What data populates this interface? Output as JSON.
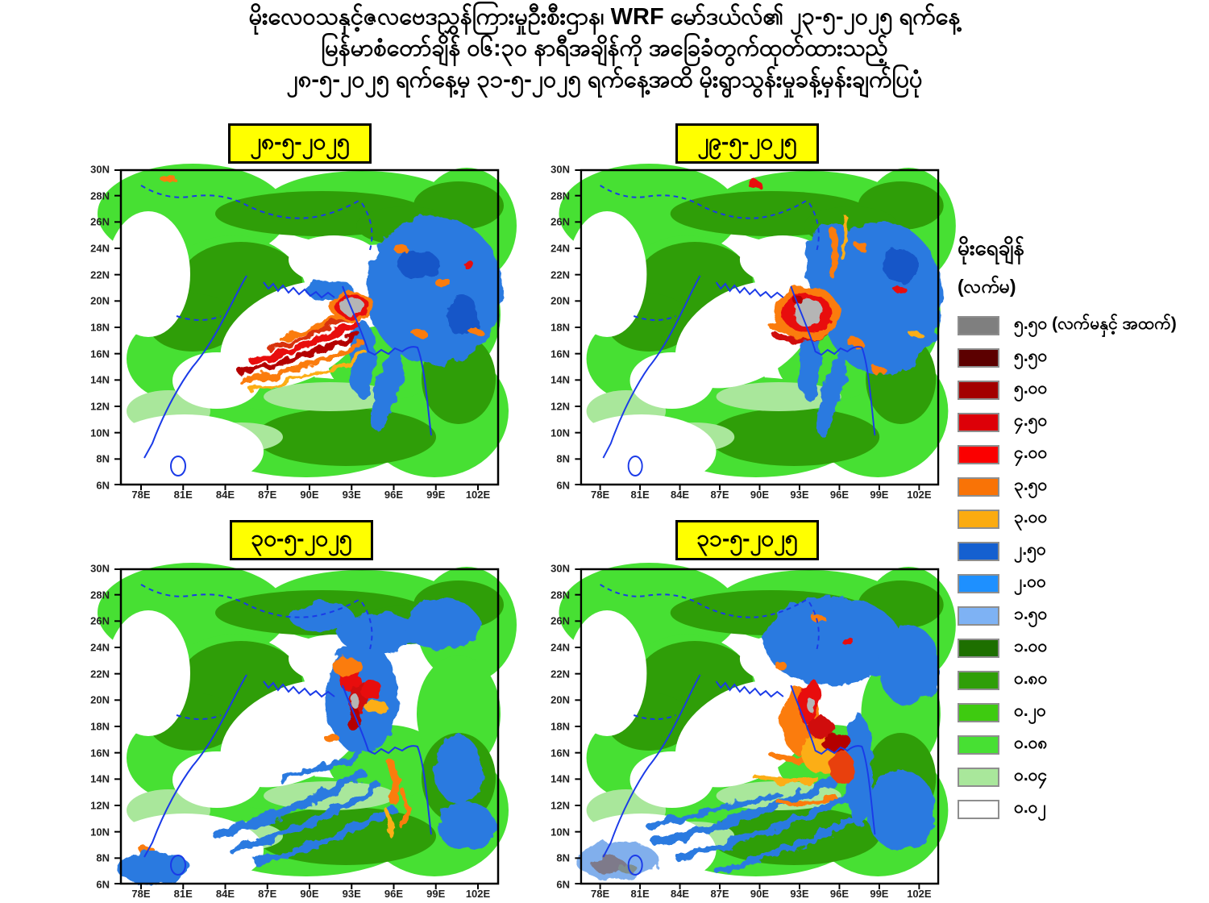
{
  "title": {
    "line1": "မိုးလေဝသနှင့်ဇလဗေဒညွှန်ကြားမှုဦးစီးဌာန၊ WRF မော်ဒယ်လ်၏ ၂၃-၅-၂၀၂၅ ရက်နေ့",
    "line2": "မြန်မာစံတော်ချိန် ၀၆:၃၀ နာရီအချိန်ကို အခြေခံတွက်ထုတ်ထားသည့်",
    "line3": "၂၈-၅-၂၀၂၅ ရက်နေ့မှ ၃၁-၅-၂၀၂၅ ရက်နေ့အထိ မိုးရွာသွန်းမှုခန့်မှန်းချက်ပြပုံ"
  },
  "panels": [
    {
      "date_label": "၂၈-၅-၂၀၂၅"
    },
    {
      "date_label": "၂၉-၅-၂၀၂၅"
    },
    {
      "date_label": "၃၀-၅-၂၀၂၅"
    },
    {
      "date_label": "၃၁-၅-၂၀၂၅"
    }
  ],
  "axes": {
    "lat_ticks": [
      "30N",
      "28N",
      "26N",
      "24N",
      "22N",
      "20N",
      "18N",
      "16N",
      "14N",
      "12N",
      "10N",
      "8N",
      "6N"
    ],
    "lon_ticks": [
      "78E",
      "81E",
      "84E",
      "87E",
      "90E",
      "93E",
      "96E",
      "99E",
      "102E"
    ]
  },
  "legend": {
    "title": "မိုးရေချိန်",
    "subtitle": "(လက်မ)",
    "entries": [
      {
        "color": "#7f7f7f",
        "label": "၅.၅၀ (လက်မနှင့် အထက်)"
      },
      {
        "color": "#5c0000",
        "label": "၅.၅၀"
      },
      {
        "color": "#a30000",
        "label": "၅.၀၀"
      },
      {
        "color": "#dd0008",
        "label": "၄.၅၀"
      },
      {
        "color": "#fb0000",
        "label": "၄.၀၀"
      },
      {
        "color": "#f97306",
        "label": "၃.၅၀"
      },
      {
        "color": "#fbab10",
        "label": "၃.၀၀"
      },
      {
        "color": "#1560d0",
        "label": "၂.၅၀"
      },
      {
        "color": "#1e90ff",
        "label": "၂.၀၀"
      },
      {
        "color": "#7eb2f4",
        "label": "၁.၅၀"
      },
      {
        "color": "#1d6f00",
        "label": "၁.၀၀"
      },
      {
        "color": "#2f9e08",
        "label": "၀.၈၀"
      },
      {
        "color": "#3ecb10",
        "label": "၀.၂၀"
      },
      {
        "color": "#47e033",
        "label": "၀.၀၈"
      },
      {
        "color": "#a9e79b",
        "label": "၀.၀၄"
      },
      {
        "color": "#ffffff",
        "label": "၀.၀၂"
      }
    ]
  }
}
